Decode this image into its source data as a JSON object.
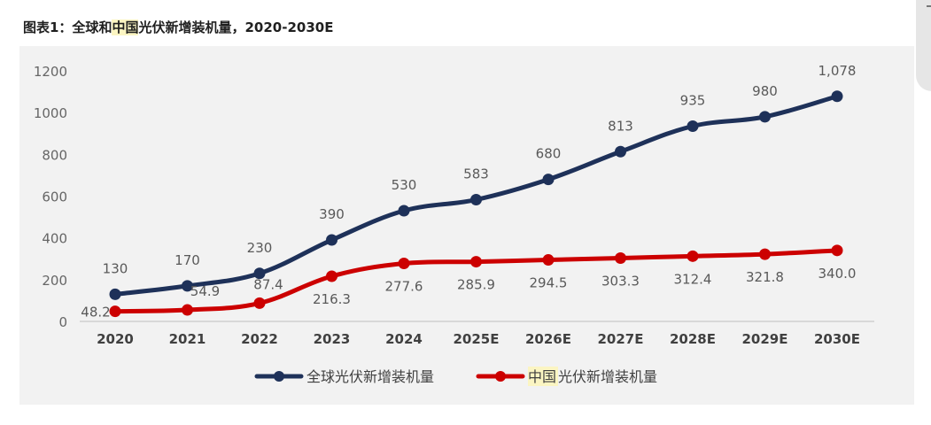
{
  "page": {
    "title_prefix": "图表1：全球和",
    "title_highlight": "中国",
    "title_suffix": "光伏新增装机量，2020-2030E"
  },
  "colors": {
    "global": "#1e3159",
    "china": "#cc0000",
    "panel": "#f2f2f2",
    "highlight": "#fbf5c2"
  },
  "chart_data": {
    "type": "line",
    "title": "图表1：全球和中国光伏新增装机量，2020-2030E",
    "categories": [
      "2020",
      "2021",
      "2022",
      "2023",
      "2024",
      "2025E",
      "2026E",
      "2027E",
      "2028E",
      "2029E",
      "2030E"
    ],
    "ylim": [
      0,
      1200
    ],
    "yticks": [
      0,
      200,
      400,
      600,
      800,
      1000,
      1200
    ],
    "grid": false,
    "legend_position": "bottom",
    "series": [
      {
        "name": "全球光伏新增装机量",
        "values": [
          130,
          170,
          230,
          390,
          530,
          583,
          680,
          813,
          935,
          980,
          1078
        ],
        "labels": [
          "130",
          "170",
          "230",
          "390",
          "530",
          "583",
          "680",
          "813",
          "935",
          "980",
          "1,078"
        ],
        "color": "#1e3159"
      },
      {
        "name": "中国光伏新增装机量",
        "name_highlight": "中国",
        "name_rest": "光伏新增装机量",
        "values": [
          48.2,
          54.9,
          87.4,
          216.3,
          277.6,
          285.9,
          294.5,
          303.3,
          312.4,
          321.8,
          340.0
        ],
        "labels": [
          "48.2",
          "54.9",
          "87.4",
          "216.3",
          "277.6",
          "285.9",
          "294.5",
          "303.3",
          "312.4",
          "321.8",
          "340.0"
        ],
        "color": "#cc0000"
      }
    ]
  }
}
